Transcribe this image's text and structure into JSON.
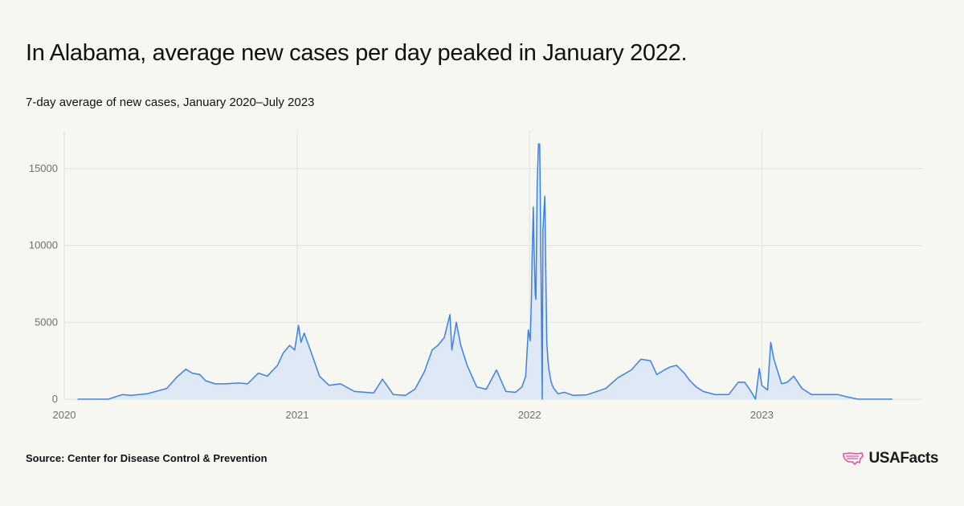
{
  "header": {
    "title": "In Alabama, average new cases per day peaked in January 2022.",
    "subtitle": "7-day average of new cases, January 2020–July 2023"
  },
  "footer": {
    "source": "Source: Center for Disease Control & Prevention",
    "logo_text": "USAFacts",
    "logo_icon": "usa-map-icon"
  },
  "colors": {
    "line": "#3b82e8",
    "fill": "#dfe8f5",
    "grid": "#e2e2dc",
    "logo_accent": "#e0569b"
  },
  "chart_data": {
    "type": "area",
    "title": "",
    "xlabel": "",
    "ylabel": "",
    "ylim": [
      0,
      17500
    ],
    "xlim": [
      "2020-01-01",
      "2023-09-10"
    ],
    "yticks": [
      0,
      5000,
      10000,
      15000
    ],
    "ytick_labels": [
      "0",
      "5000",
      "10000",
      "15000"
    ],
    "xticks": [
      "2020-01-01",
      "2021-01-01",
      "2022-01-01",
      "2023-01-01"
    ],
    "xtick_labels": [
      "2020",
      "2021",
      "2022",
      "2023"
    ],
    "grid": true,
    "series": [
      {
        "x": [
          "2020-01-22",
          "2020-03-10",
          "2020-04-01",
          "2020-04-15",
          "2020-05-10",
          "2020-06-10",
          "2020-06-25",
          "2020-07-10",
          "2020-07-20",
          "2020-08-01",
          "2020-08-10",
          "2020-08-25",
          "2020-09-10",
          "2020-10-01",
          "2020-10-15",
          "2020-11-01",
          "2020-11-15",
          "2020-12-01",
          "2020-12-10",
          "2020-12-20",
          "2020-12-28",
          "2021-01-03",
          "2021-01-07",
          "2021-01-12",
          "2021-01-25",
          "2021-02-05",
          "2021-02-20",
          "2021-03-10",
          "2021-04-01",
          "2021-05-01",
          "2021-05-15",
          "2021-06-01",
          "2021-06-20",
          "2021-07-05",
          "2021-07-20",
          "2021-08-01",
          "2021-08-10",
          "2021-08-20",
          "2021-08-29",
          "2021-09-01",
          "2021-09-08",
          "2021-09-15",
          "2021-09-25",
          "2021-10-10",
          "2021-10-25",
          "2021-11-10",
          "2021-11-25",
          "2021-12-10",
          "2021-12-20",
          "2021-12-26",
          "2021-12-30",
          "2022-01-02",
          "2022-01-04",
          "2022-01-05",
          "2022-01-07",
          "2022-01-08",
          "2022-01-10",
          "2022-01-11",
          "2022-01-13",
          "2022-01-15",
          "2022-01-17",
          "2022-01-18",
          "2022-01-21",
          "2022-01-22",
          "2022-01-24",
          "2022-01-25",
          "2022-01-28",
          "2022-01-30",
          "2022-02-01",
          "2022-02-04",
          "2022-02-08",
          "2022-02-15",
          "2022-02-25",
          "2022-03-10",
          "2022-04-01",
          "2022-05-01",
          "2022-05-20",
          "2022-06-10",
          "2022-06-25",
          "2022-07-10",
          "2022-07-20",
          "2022-08-01",
          "2022-08-10",
          "2022-08-20",
          "2022-09-01",
          "2022-09-10",
          "2022-09-20",
          "2022-10-01",
          "2022-10-20",
          "2022-11-10",
          "2022-11-25",
          "2022-12-05",
          "2022-12-15",
          "2022-12-22",
          "2022-12-28",
          "2023-01-01",
          "2023-01-10",
          "2023-01-15",
          "2023-01-20",
          "2023-02-01",
          "2023-02-10",
          "2023-02-20",
          "2023-03-05",
          "2023-03-20",
          "2023-04-10",
          "2023-05-01",
          "2023-05-15",
          "2023-06-01",
          "2023-07-01",
          "2023-07-25"
        ],
        "values": [
          0,
          0,
          300,
          250,
          350,
          700,
          1400,
          1950,
          1700,
          1600,
          1200,
          1000,
          1000,
          1050,
          1000,
          1700,
          1500,
          2200,
          3000,
          3500,
          3200,
          4800,
          3700,
          4300,
          2800,
          1500,
          900,
          1000,
          500,
          400,
          1300,
          300,
          250,
          650,
          1800,
          3200,
          3500,
          4000,
          5500,
          3200,
          5000,
          3500,
          2200,
          800,
          650,
          1900,
          500,
          450,
          800,
          1500,
          4500,
          3800,
          6500,
          9000,
          12500,
          10000,
          6800,
          6500,
          14000,
          16600,
          16600,
          13000,
          0,
          11000,
          12500,
          13200,
          3800,
          2500,
          1800,
          1100,
          700,
          350,
          450,
          250,
          280,
          700,
          1400,
          1900,
          2600,
          2500,
          1600,
          1900,
          2100,
          2200,
          1700,
          1200,
          800,
          500,
          300,
          300,
          1100,
          1100,
          500,
          0,
          2000,
          900,
          600,
          3700,
          2600,
          1000,
          1100,
          1500,
          700,
          300,
          300,
          300,
          150,
          0,
          0,
          0
        ]
      }
    ]
  }
}
